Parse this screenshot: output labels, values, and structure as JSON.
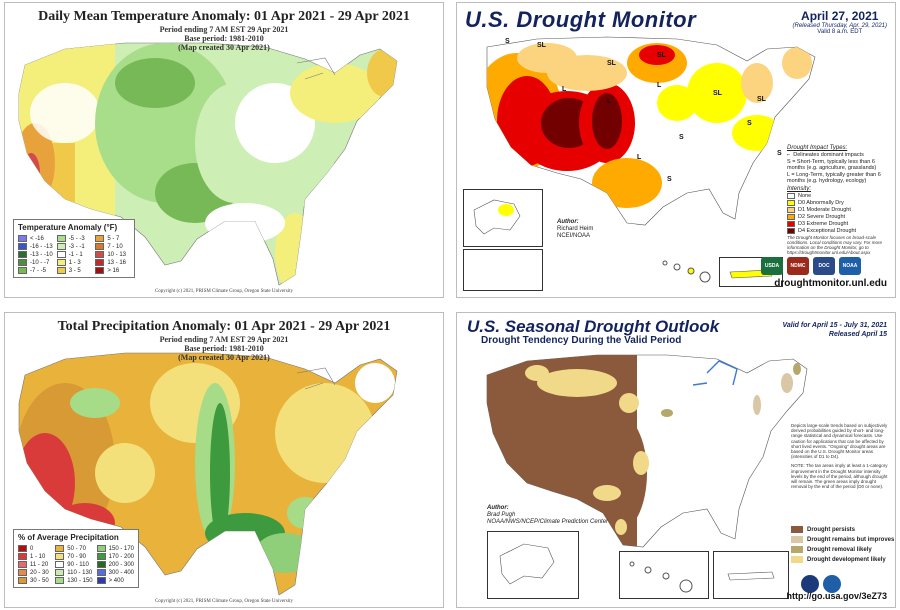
{
  "temp": {
    "title": "Daily Mean Temperature Anomaly: 01 Apr 2021 - 29 Apr 2021",
    "sub1": "Period ending 7 AM EST 29 Apr 2021",
    "sub2": "Base period: 1981-2010",
    "sub3": "(Map created 30 Apr 2021)",
    "legend_title": "Temperature Anomaly (°F)",
    "legend": [
      {
        "label": "< -16",
        "color": "#7b7bf0"
      },
      {
        "label": "-5 - -3",
        "color": "#a8dd8a"
      },
      {
        "label": "5 - 7",
        "color": "#e8a23b"
      },
      {
        "label": "-16 - -13",
        "color": "#3b55c9"
      },
      {
        "label": "-3 - -1",
        "color": "#cdeeb5"
      },
      {
        "label": "7 - 10",
        "color": "#d77a2e"
      },
      {
        "label": "-13 - -10",
        "color": "#2e6b2e"
      },
      {
        "label": "-1 - 1",
        "color": "#ffffff"
      },
      {
        "label": "10 - 13",
        "color": "#d24b4b"
      },
      {
        "label": "-10 - -7",
        "color": "#4e8e3c"
      },
      {
        "label": "1 - 3",
        "color": "#f4ef7a"
      },
      {
        "label": "13 - 16",
        "color": "#c22a2a"
      },
      {
        "label": "-7 - -5",
        "color": "#77b857"
      },
      {
        "label": "3 - 5",
        "color": "#f0c94a"
      },
      {
        "label": "> 16",
        "color": "#a10f0f"
      }
    ],
    "copyright": "Copyright (c) 2021, PRISM Climate Group, Oregon State University"
  },
  "drought": {
    "title": "U.S. Drought Monitor",
    "date": "April 27, 2021",
    "released": "(Released Thursday, Apr. 29, 2021)",
    "valid": "Valid 8 a.m. EDT",
    "impact_title": "Drought Impact Types:",
    "impact_line": "Delineates dominant impacts",
    "impact_s": "S = Short-Term, typically less than 6 months (e.g. agriculture, grasslands)",
    "impact_l": "L = Long-Term, typically greater than 6 months (e.g. hydrology, ecology)",
    "intensity_title": "Intensity:",
    "intensity": [
      {
        "label": "None",
        "color": "#ffffff"
      },
      {
        "label": "D0 Abnormally Dry",
        "color": "#ffff00"
      },
      {
        "label": "D1 Moderate Drought",
        "color": "#fcd37f"
      },
      {
        "label": "D2 Severe Drought",
        "color": "#ffaa00"
      },
      {
        "label": "D3 Extreme Drought",
        "color": "#e60000"
      },
      {
        "label": "D4 Exceptional Drought",
        "color": "#730000"
      }
    ],
    "note": "The Drought Monitor focuses on broad-scale conditions. Local conditions may vary. For more information on the Drought Monitor, go to https://droughtmonitor.unl.edu/About.aspx",
    "author_label": "Author:",
    "author_name": "Richard Heim",
    "author_org": "NCEI/NOAA",
    "url": "droughtmonitor.unl.edu",
    "logos": [
      "USDA",
      "NDMC",
      "DOC",
      "NOAA"
    ],
    "map_labels": [
      "SL",
      "SL",
      "SL",
      "SL",
      "L",
      "L",
      "L",
      "S",
      "S",
      "S",
      "SL",
      "SL",
      "S",
      "S"
    ]
  },
  "precip": {
    "title": "Total Precipitation Anomaly: 01 Apr 2021 - 29 Apr 2021",
    "sub1": "Period ending 7 AM EST 29 Apr 2021",
    "sub2": "Base period: 1981-2010",
    "sub3": "(Map created 30 Apr 2021)",
    "legend_title": "% of Average Precipitation",
    "legend": [
      {
        "label": "0",
        "color": "#b30f0f"
      },
      {
        "label": "50 - 70",
        "color": "#e8b23b"
      },
      {
        "label": "150 - 170",
        "color": "#8fcf7a"
      },
      {
        "label": "1 - 10",
        "color": "#d93b3b"
      },
      {
        "label": "70 - 90",
        "color": "#f4e07a"
      },
      {
        "label": "170 - 200",
        "color": "#3e9a3e"
      },
      {
        "label": "11 - 20",
        "color": "#e56a6a"
      },
      {
        "label": "90 - 110",
        "color": "#ffffff"
      },
      {
        "label": "200 - 300",
        "color": "#236b23"
      },
      {
        "label": "20 - 30",
        "color": "#e58a4a"
      },
      {
        "label": "110 - 130",
        "color": "#c8ecb0"
      },
      {
        "label": "300 - 400",
        "color": "#5a6be0"
      },
      {
        "label": "30 - 50",
        "color": "#d79a35"
      },
      {
        "label": "130 - 150",
        "color": "#a6dc88"
      },
      {
        "label": "> 400",
        "color": "#2b3bb0"
      }
    ],
    "copyright": "Copyright (c) 2021, PRISM Climate Group, Oregon State University"
  },
  "outlook": {
    "title": "U.S. Seasonal Drought Outlook",
    "subtitle": "Drought Tendency During the Valid Period",
    "valid": "Valid for April 15 - July 31, 2021",
    "released": "Released April 15",
    "desc1": "Depicts large-scale trends based on subjectively derived probabilities guided by short- and long-range statistical and dynamical forecasts. Use caution for applications that can be affected by short lived events. \"Ongoing\" drought areas are based on the U.S. Drought Monitor areas (intensities of D1 to D4).",
    "desc2": "NOTE: The tan areas imply at least a 1-category improvement in the Drought Monitor intensity levels by the end of the period, although drought will remain. The green areas imply drought removal by the end of the period (D0 or none).",
    "author_label": "Author:",
    "author_name": "Brad Pugh",
    "author_org": "NOAA/NWS/NCEP/Climate Prediction Center",
    "legend": [
      {
        "label": "Drought persists",
        "color": "#8b5a3c"
      },
      {
        "label": "Drought remains but improves",
        "color": "#d9c7a5"
      },
      {
        "label": "Drought removal likely",
        "color": "#b5a86a"
      },
      {
        "label": "Drought development likely",
        "color": "#f1d98a"
      }
    ],
    "url": "http://go.usa.gov/3eZ73"
  }
}
